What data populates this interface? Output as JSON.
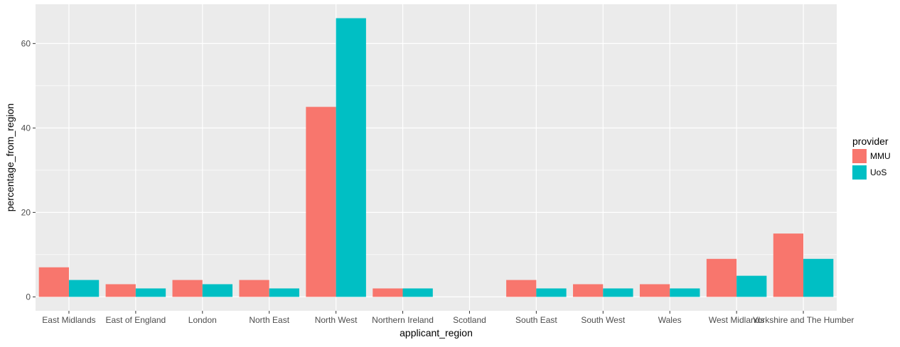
{
  "chart_data": {
    "type": "bar",
    "xlabel": "applicant_region",
    "ylabel": "percentage_from_region",
    "categories": [
      "East Midlands",
      "East of England",
      "London",
      "North East",
      "North West",
      "Northern Ireland",
      "Scotland",
      "South East",
      "South West",
      "Wales",
      "West Midlands",
      "Yorkshire and The Humber"
    ],
    "series": [
      {
        "name": "MMU",
        "color": "#F8766D",
        "values": [
          7,
          3,
          4,
          4,
          45,
          2,
          0,
          4,
          3,
          3,
          9,
          15
        ]
      },
      {
        "name": "UoS",
        "color": "#00BFC4",
        "values": [
          4,
          2,
          3,
          2,
          66,
          2,
          0,
          2,
          2,
          2,
          5,
          9
        ]
      }
    ],
    "yticks": [
      0,
      20,
      40,
      60
    ],
    "ylim": [
      -3.3,
      69.3
    ],
    "grid": true,
    "legend": {
      "title": "provider",
      "position": "right"
    },
    "panel_background": "#EBEBEB",
    "grid_color": "#FFFFFF"
  }
}
